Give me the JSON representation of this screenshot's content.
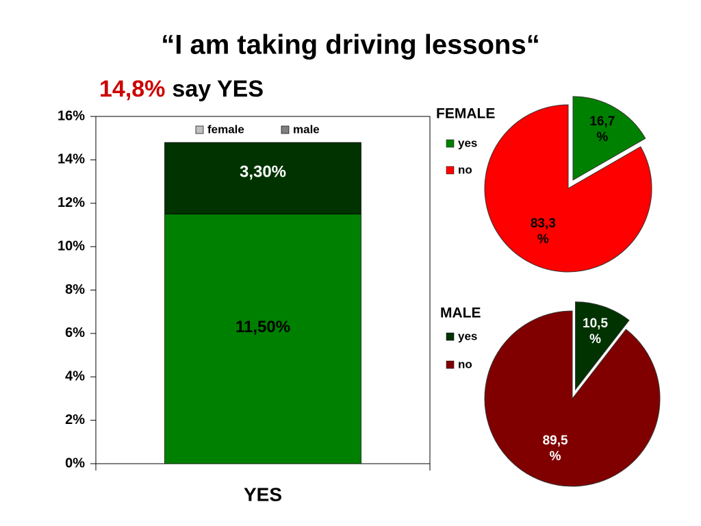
{
  "title": "“I am taking driving lessons“",
  "subtitle": {
    "highlight": "14,8%",
    "text": "say YES",
    "highlight_color": "#cc0000"
  },
  "chart_data": [
    {
      "type": "bar",
      "stacked": true,
      "categories": [
        "YES"
      ],
      "series": [
        {
          "name": "female",
          "color": "#008000",
          "legend_color": "#c0c0c0",
          "label_color": "#000000",
          "values": [
            11.5
          ],
          "value_labels": [
            "11,50%"
          ]
        },
        {
          "name": "male",
          "color": "#003300",
          "legend_color": "#808080",
          "label_color": "#ffffff",
          "values": [
            3.3
          ],
          "value_labels": [
            "3,30%"
          ]
        }
      ],
      "ylim": [
        0,
        16
      ],
      "yticks": [
        {
          "value": 0,
          "label": "0%"
        },
        {
          "value": 2,
          "label": "2%"
        },
        {
          "value": 4,
          "label": "4%"
        },
        {
          "value": 6,
          "label": "6%"
        },
        {
          "value": 8,
          "label": "8%"
        },
        {
          "value": 10,
          "label": "10%"
        },
        {
          "value": 12,
          "label": "12%"
        },
        {
          "value": 14,
          "label": "14%"
        },
        {
          "value": 16,
          "label": "16%"
        }
      ],
      "grid": false,
      "legend": "top"
    },
    {
      "type": "pie",
      "title": "FEMALE",
      "categories": [
        "yes",
        "no"
      ],
      "values": [
        16.7,
        83.3
      ],
      "value_labels": [
        "16,7 %",
        "83,3 %"
      ],
      "colors": [
        "#008000",
        "#ff0000"
      ],
      "label_color": "#000000",
      "exploded_slice": "yes",
      "legend": "left"
    },
    {
      "type": "pie",
      "title": "MALE",
      "categories": [
        "yes",
        "no"
      ],
      "values": [
        10.5,
        89.5
      ],
      "value_labels": [
        "10,5 %",
        "89,5 %"
      ],
      "colors": [
        "#003300",
        "#800000"
      ],
      "label_color": "#ffffff",
      "exploded_slice": "yes",
      "legend": "left"
    }
  ]
}
